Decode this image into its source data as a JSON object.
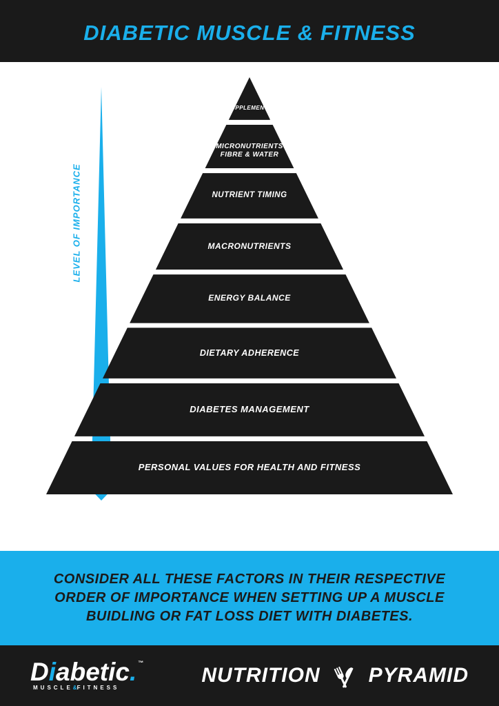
{
  "colors": {
    "accent": "#1aafeb",
    "dark": "#1a1a1a",
    "white": "#ffffff"
  },
  "header": {
    "title": "DIABETIC MUSCLE & FITNESS"
  },
  "pyramid": {
    "arrow_label": "LEVEL OF IMPORTANCE",
    "arrow_color": "#1aafeb",
    "gap": 7,
    "tiers": [
      {
        "label": "SUPPLEMENTS",
        "fontsize": 8
      },
      {
        "label": "MICRONUTRIENTS\nFIBRE & WATER",
        "fontsize": 10
      },
      {
        "label": "NUTRIENT TIMING",
        "fontsize": 11.5
      },
      {
        "label": "MACRONUTRIENTS",
        "fontsize": 12
      },
      {
        "label": "ENERGY BALANCE",
        "fontsize": 12
      },
      {
        "label": "DIETARY ADHERENCE",
        "fontsize": 12.5
      },
      {
        "label": "DIABETES MANAGEMENT",
        "fontsize": 13
      },
      {
        "label": "PERSONAL VALUES FOR HEALTH AND FITNESS",
        "fontsize": 13
      }
    ],
    "geometry": {
      "total_width": 590,
      "total_height": 605,
      "tier_heights": [
        64,
        66,
        68,
        70,
        73,
        76,
        80,
        80
      ]
    }
  },
  "mid_banner": {
    "text": "CONSIDER ALL THESE FACTORS IN THEIR RESPECTIVE ORDER OF IMPORTANCE WHEN SETTING UP A MUSCLE BUIDLING OR FAT LOSS DIET WITH DIABETES."
  },
  "footer": {
    "logo_text": "Diabetic",
    "logo_sub_a": "MUSCLE",
    "logo_sub_amp": "&",
    "logo_sub_b": "FITNESS",
    "right_a": "NUTRITION",
    "right_b": "PYRAMID"
  }
}
